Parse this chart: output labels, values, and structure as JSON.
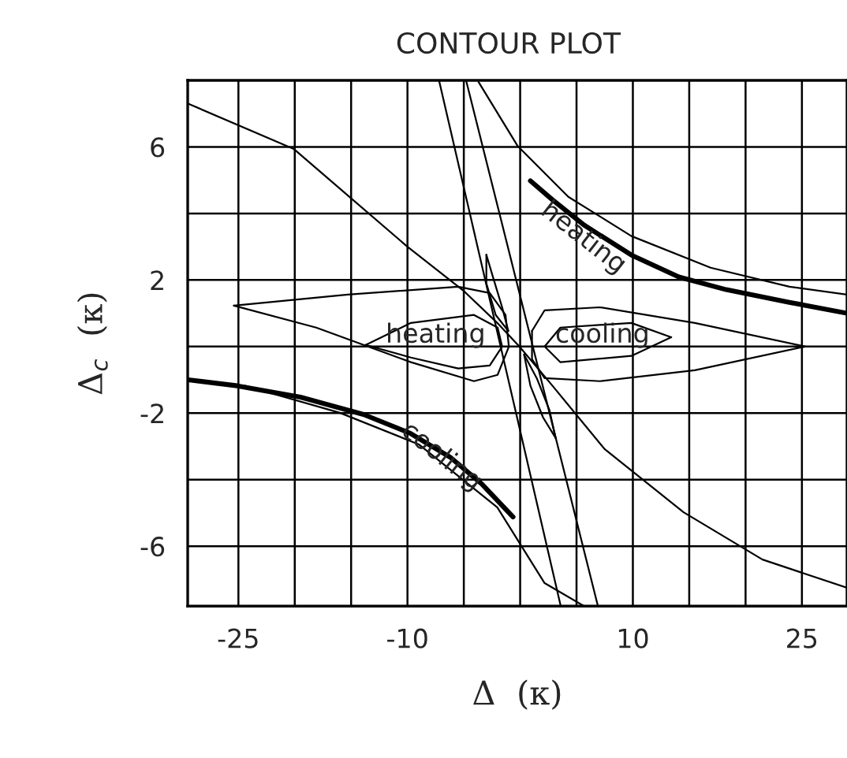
{
  "chart_data": {
    "type": "line",
    "title": "CONTOUR PLOT",
    "xlabel": "Δ  (κ)",
    "ylabel": "Δ$_{c}$  (κ)",
    "xlim": [
      -29.5,
      29
    ],
    "ylim": [
      -7.8,
      8
    ],
    "xticks": [
      -25,
      {
        "value": -20,
        "label": null
      },
      {
        "value": -15,
        "label": null
      },
      -10,
      {
        "value": -5,
        "label": null
      },
      {
        "value": 0,
        "label": null
      },
      {
        "value": 5,
        "label": null
      },
      10,
      {
        "value": 15,
        "label": null
      },
      {
        "value": 20,
        "label": null
      },
      25
    ],
    "yticks": [
      -6,
      {
        "value": -4,
        "label": null
      },
      -2,
      {
        "value": 0,
        "label": null
      },
      2,
      {
        "value": 4,
        "label": null
      },
      6
    ],
    "grid": true,
    "legend": false,
    "marker": "none",
    "line_style": "solid",
    "series": [
      {
        "color": "#000000",
        "x": [
          0.91,
          2.87,
          5.67,
          9.87,
          14.08,
          18.28,
          23.88,
          29
        ],
        "values": [
          4.98,
          4.41,
          3.65,
          2.75,
          2.09,
          1.71,
          1.33,
          1.0
        ]
      },
      {
        "color": "#000000",
        "x": [
          -29.47,
          -25.1,
          -19.5,
          -13.9,
          -9.73,
          -6.23,
          -3.43,
          -0.63
        ],
        "values": [
          -1.0,
          -1.18,
          -1.52,
          -2.04,
          -2.61,
          -3.32,
          -4.12,
          -5.12
        ]
      },
      {
        "color": "#000000",
        "x": [
          -29.47,
          -20.1,
          -10.0,
          -4.97,
          -2.03,
          -0.07,
          2.87,
          7.49,
          14.5,
          21.5,
          29
        ],
        "values": [
          7.3,
          5.94,
          3.0,
          1.66,
          0.71,
          0,
          -1.18,
          -3.08,
          -4.98,
          -6.4,
          -7.25
        ]
      },
      {
        "color": "#000000",
        "x": [
          -7.2,
          3.6
        ],
        "values": [
          8,
          -7.8
        ]
      },
      {
        "color": "#000000",
        "x": [
          -4.8,
          6.9
        ],
        "values": [
          8,
          -7.8
        ]
      },
      {
        "color": "#000000",
        "x": [
          -3.71,
          -0.21,
          4.27,
          9.87,
          16.9,
          23.9,
          29
        ],
        "values": [
          7.96,
          6.02,
          4.5,
          3.32,
          2.37,
          1.8,
          1.56
        ]
      },
      {
        "color": "#000000",
        "x": [
          -24.4,
          -16.0,
          -9.0,
          -2.03,
          2.17,
          5.67
        ],
        "values": [
          -1.18,
          -1.99,
          -2.94,
          -4.83,
          -7.11,
          -7.8
        ]
      },
      {
        "color": "#000000",
        "x": [
          -25.4,
          -15.3,
          -5.5,
          -2.7,
          -1.3,
          -1.0
        ],
        "values": [
          1.23,
          1.56,
          1.8,
          1.61,
          0.95,
          0
        ]
      },
      {
        "color": "#000000",
        "x": [
          -1.0,
          -2.0,
          -4.1,
          -9.7,
          -18.1,
          -25.4
        ],
        "values": [
          0,
          -0.85,
          -1.04,
          -0.47,
          0.57,
          1.23
        ]
      },
      {
        "color": "#000000",
        "x": [
          -13.7,
          -9.7,
          -4.1,
          -2.0,
          -1.6
        ],
        "values": [
          0.05,
          0.71,
          0.95,
          0.57,
          0
        ]
      },
      {
        "color": "#000000",
        "x": [
          -1.6,
          -2.7,
          -5.5,
          -9.7,
          -13.7
        ],
        "values": [
          0,
          -0.57,
          -0.66,
          -0.33,
          0.05
        ]
      },
      {
        "color": "#000000",
        "x": [
          25.3,
          15.5,
          7.07,
          2.17,
          1.05
        ],
        "values": [
          0,
          0.71,
          1.18,
          1.09,
          0.47
        ]
      },
      {
        "color": "#000000",
        "x": [
          1.05,
          1.05,
          2.17,
          7.07,
          15.5,
          25.3
        ],
        "values": [
          0.47,
          -0.38,
          -0.95,
          -1.04,
          -0.71,
          0
        ]
      },
      {
        "color": "#000000",
        "x": [
          2.17,
          3.57,
          9.87,
          13.4
        ],
        "values": [
          0,
          0.57,
          0.71,
          0.28
        ]
      },
      {
        "color": "#000000",
        "x": [
          13.4,
          9.87,
          3.57,
          2.17
        ],
        "values": [
          0.28,
          -0.28,
          -0.47,
          0
        ]
      },
      {
        "color": "#000000",
        "x": [
          -3.0,
          -2.45,
          -1.6,
          -1.05
        ],
        "values": [
          2.76,
          2.13,
          1.18,
          0.47
        ]
      },
      {
        "color": "#000000",
        "x": [
          -1.05,
          -2.17,
          -3.0,
          -3.0
        ],
        "values": [
          0.47,
          0.95,
          1.9,
          2.76
        ]
      },
      {
        "color": "#000000",
        "x": [
          0.35,
          1.47,
          2.59,
          3.15
        ],
        "values": [
          -0.24,
          -0.95,
          -1.9,
          -2.75
        ]
      },
      {
        "color": "#000000",
        "x": [
          3.15,
          2.03,
          0.91,
          0.35
        ],
        "values": [
          -2.75,
          -2.13,
          -1.18,
          -0.24
        ]
      }
    ],
    "annotations": [
      "heating",
      "heating",
      "cooling",
      "cooling"
    ]
  }
}
